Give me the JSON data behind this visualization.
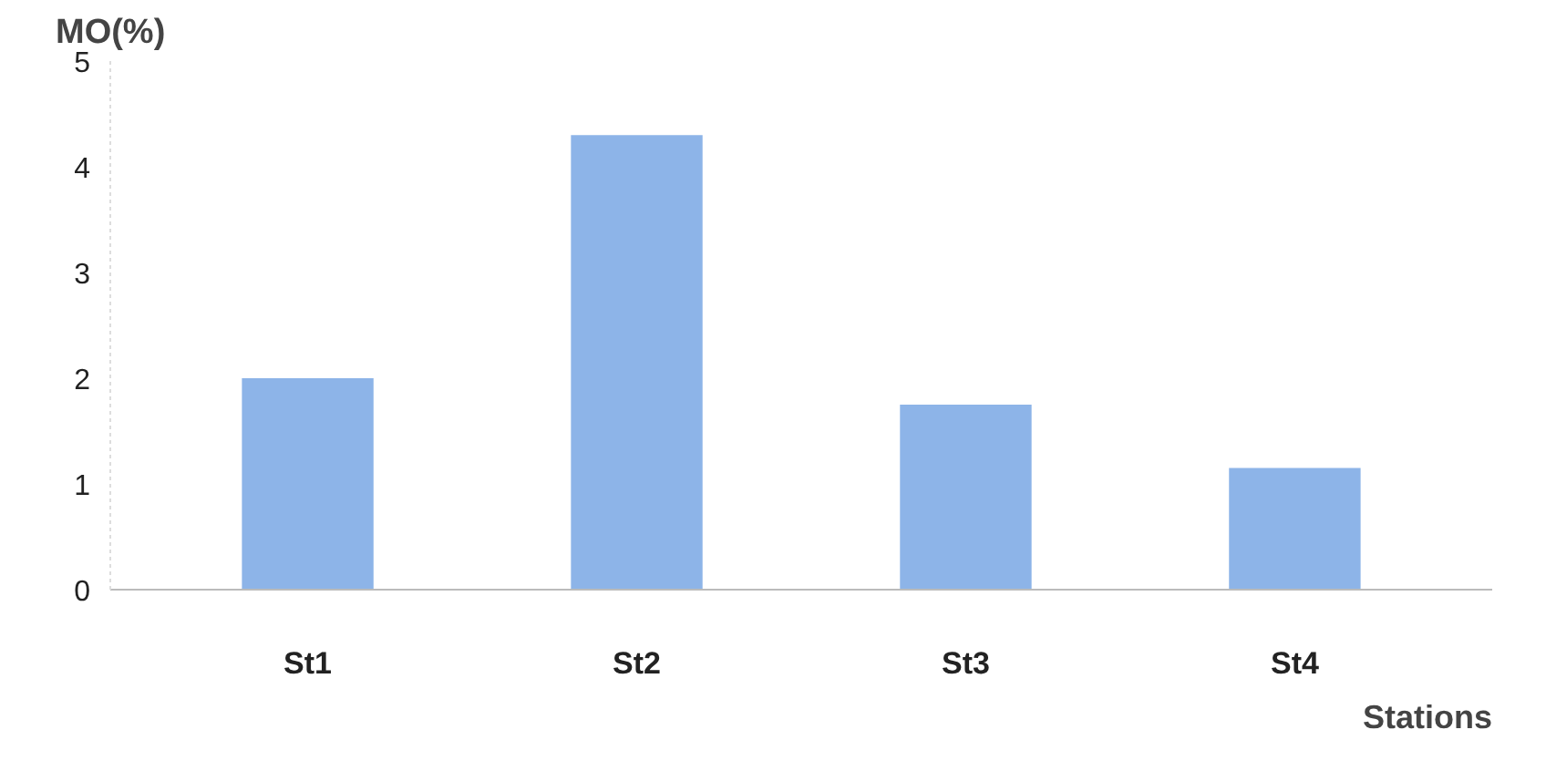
{
  "chart_data": {
    "type": "bar",
    "ylabel": "MO(%)",
    "xlabel": "Stations",
    "categories": [
      "St1",
      "St2",
      "St3",
      "St4"
    ],
    "values": [
      2.0,
      4.3,
      1.75,
      1.15
    ],
    "color": "#8db4e8",
    "ylim": [
      0,
      5
    ],
    "yticks": [
      0,
      1,
      2,
      3,
      4,
      5
    ],
    "grid": false
  }
}
